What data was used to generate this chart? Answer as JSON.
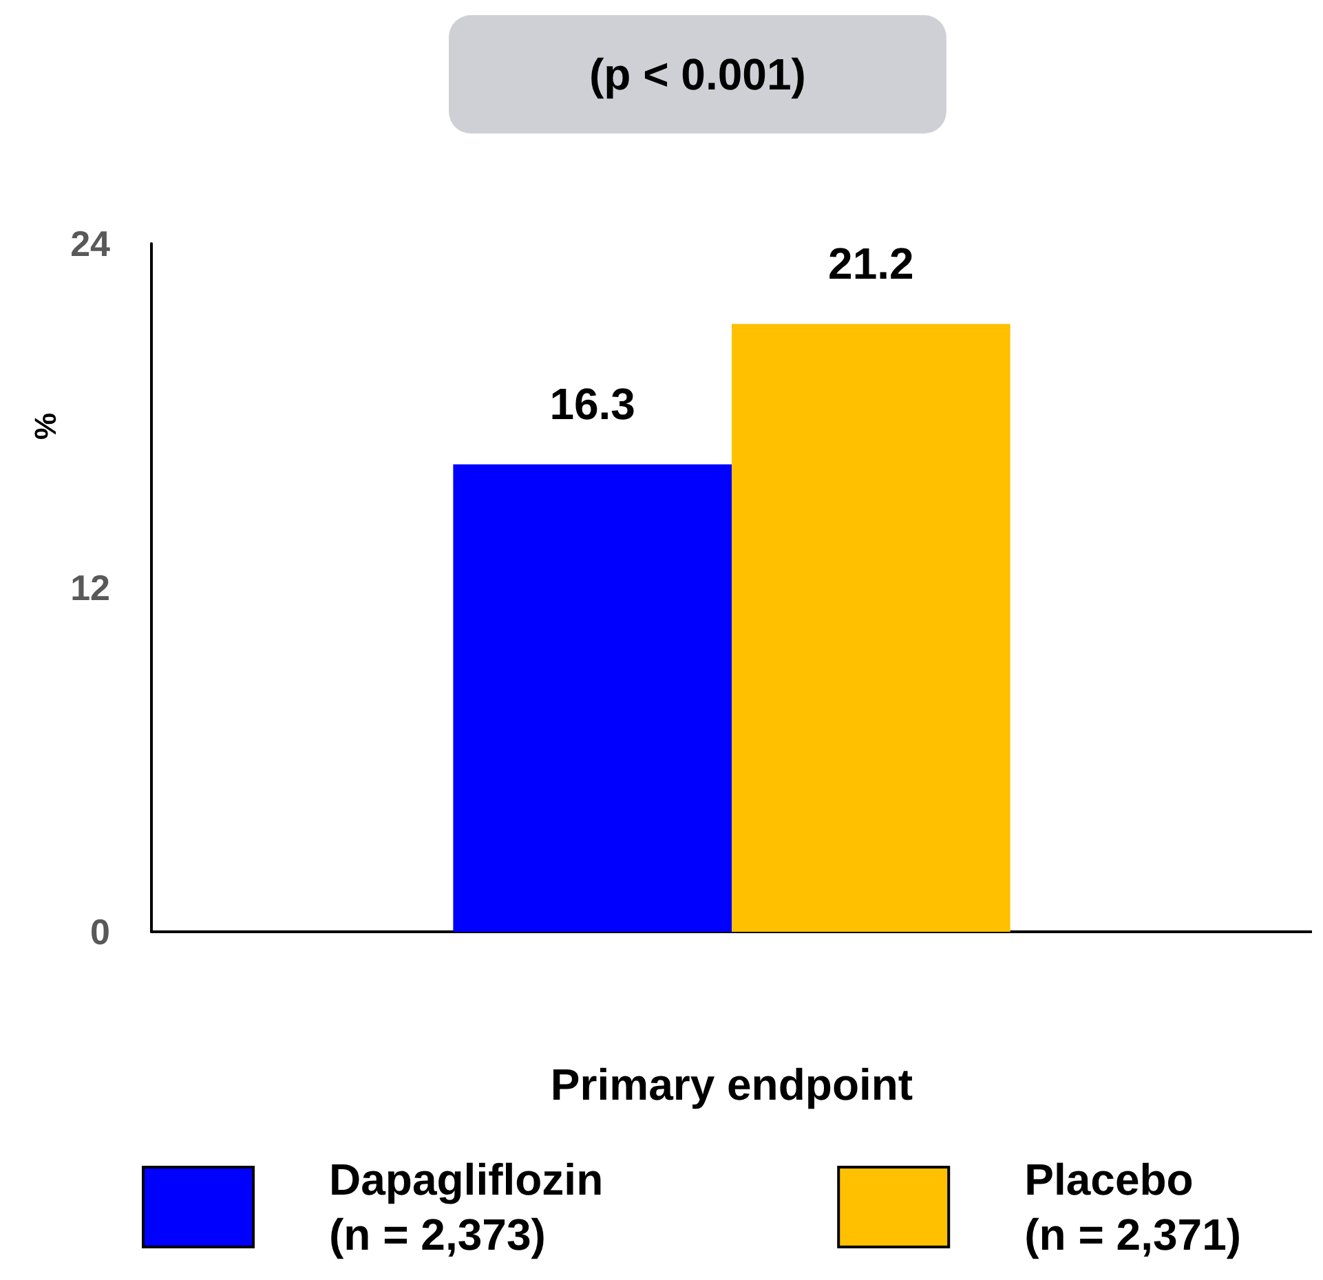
{
  "chart_data": {
    "type": "bar",
    "categories": [
      null
    ],
    "xlabel": "Primary endpoint",
    "ylabel": "%",
    "annotations": [
      "(p < 0.001)"
    ],
    "series": [
      {
        "name": "Dapagliflozin\n(n = 2,373)",
        "color": "#0000ff",
        "values": [
          16.3
        ]
      },
      {
        "name": "Placebo\n(n = 2,371)",
        "color": "#ffc000",
        "values": [
          21.2
        ]
      }
    ],
    "ylim": [
      0,
      24
    ],
    "yticks": [
      0,
      12,
      24
    ],
    "grid": false,
    "legend": "bottom",
    "data_labels": true
  }
}
